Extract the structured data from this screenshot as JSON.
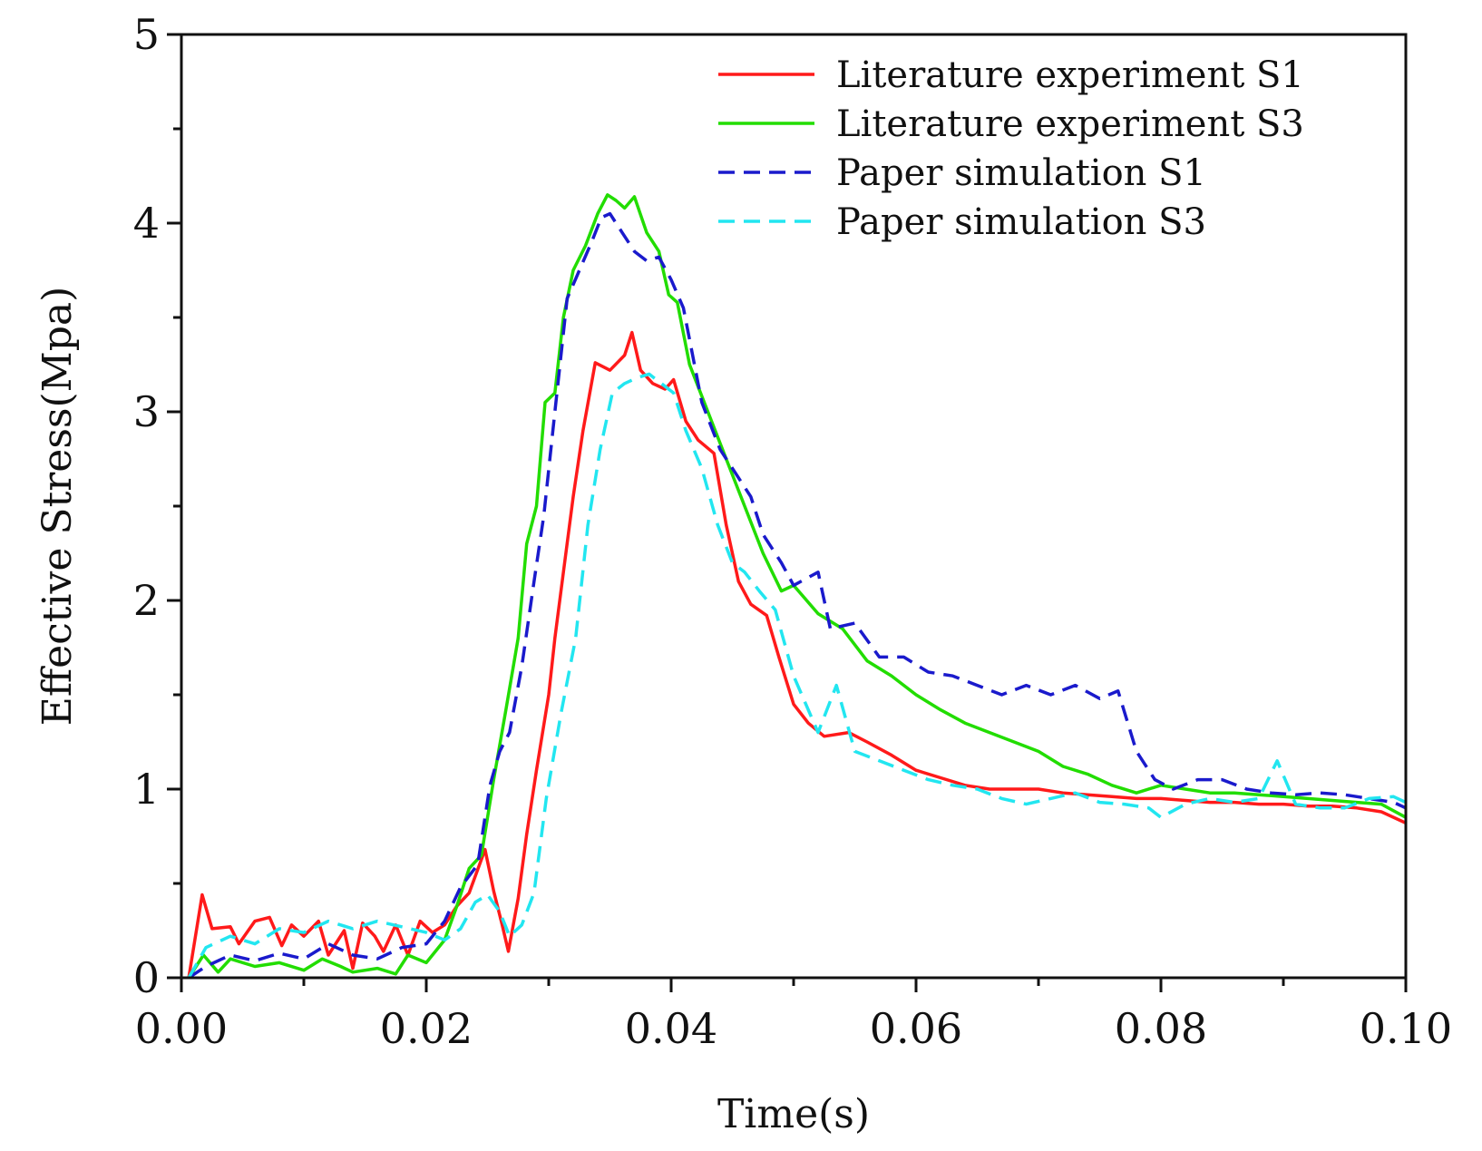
{
  "chart_data": {
    "type": "line",
    "title": "",
    "xlabel": "Time(s)",
    "ylabel": "Effective Stress(Mpa)",
    "xlim": [
      0,
      0.1
    ],
    "ylim": [
      0,
      5
    ],
    "x_ticks": [
      0,
      0.02,
      0.04,
      0.06,
      0.08,
      0.1
    ],
    "x_tick_labels": [
      "0.00",
      "0.02",
      "0.04",
      "0.06",
      "0.08",
      "0.10"
    ],
    "y_ticks": [
      0,
      1,
      2,
      3,
      4,
      5
    ],
    "y_tick_labels": [
      "0",
      "1",
      "2",
      "3",
      "4",
      "5"
    ],
    "grid": false,
    "legend_position": "top-right",
    "series": [
      {
        "name": "Literature experiment S1",
        "color": "#ff1a1a",
        "style": "solid",
        "points": [
          [
            0.0006,
            0.0
          ],
          [
            0.0017,
            0.44
          ],
          [
            0.0025,
            0.26
          ],
          [
            0.004,
            0.27
          ],
          [
            0.0047,
            0.18
          ],
          [
            0.006,
            0.3
          ],
          [
            0.0072,
            0.32
          ],
          [
            0.0082,
            0.17
          ],
          [
            0.009,
            0.28
          ],
          [
            0.01,
            0.22
          ],
          [
            0.0112,
            0.3
          ],
          [
            0.012,
            0.12
          ],
          [
            0.0133,
            0.25
          ],
          [
            0.014,
            0.05
          ],
          [
            0.0148,
            0.29
          ],
          [
            0.0158,
            0.22
          ],
          [
            0.0165,
            0.14
          ],
          [
            0.0175,
            0.28
          ],
          [
            0.0185,
            0.12
          ],
          [
            0.0195,
            0.3
          ],
          [
            0.0205,
            0.24
          ],
          [
            0.0215,
            0.28
          ],
          [
            0.0225,
            0.38
          ],
          [
            0.0235,
            0.45
          ],
          [
            0.0248,
            0.68
          ],
          [
            0.0255,
            0.46
          ],
          [
            0.0262,
            0.28
          ],
          [
            0.0267,
            0.14
          ],
          [
            0.0275,
            0.42
          ],
          [
            0.0282,
            0.76
          ],
          [
            0.029,
            1.1
          ],
          [
            0.03,
            1.5
          ],
          [
            0.0305,
            1.8
          ],
          [
            0.0312,
            2.15
          ],
          [
            0.032,
            2.55
          ],
          [
            0.0328,
            2.9
          ],
          [
            0.0338,
            3.26
          ],
          [
            0.035,
            3.22
          ],
          [
            0.0362,
            3.3
          ],
          [
            0.0368,
            3.42
          ],
          [
            0.0375,
            3.22
          ],
          [
            0.0385,
            3.15
          ],
          [
            0.0395,
            3.12
          ],
          [
            0.0402,
            3.17
          ],
          [
            0.0412,
            2.95
          ],
          [
            0.0422,
            2.85
          ],
          [
            0.0435,
            2.78
          ],
          [
            0.0445,
            2.4
          ],
          [
            0.0455,
            2.1
          ],
          [
            0.0465,
            1.98
          ],
          [
            0.0478,
            1.92
          ],
          [
            0.0488,
            1.7
          ],
          [
            0.05,
            1.45
          ],
          [
            0.0512,
            1.35
          ],
          [
            0.0525,
            1.28
          ],
          [
            0.0545,
            1.3
          ],
          [
            0.056,
            1.25
          ],
          [
            0.058,
            1.18
          ],
          [
            0.06,
            1.1
          ],
          [
            0.062,
            1.06
          ],
          [
            0.064,
            1.02
          ],
          [
            0.066,
            1.0
          ],
          [
            0.068,
            1.0
          ],
          [
            0.07,
            1.0
          ],
          [
            0.072,
            0.98
          ],
          [
            0.074,
            0.97
          ],
          [
            0.076,
            0.96
          ],
          [
            0.078,
            0.95
          ],
          [
            0.08,
            0.95
          ],
          [
            0.082,
            0.94
          ],
          [
            0.084,
            0.93
          ],
          [
            0.086,
            0.93
          ],
          [
            0.088,
            0.92
          ],
          [
            0.09,
            0.92
          ],
          [
            0.092,
            0.91
          ],
          [
            0.094,
            0.91
          ],
          [
            0.096,
            0.9
          ],
          [
            0.098,
            0.88
          ],
          [
            0.1,
            0.82
          ]
        ]
      },
      {
        "name": "Literature experiment S3",
        "color": "#22dd00",
        "style": "solid",
        "points": [
          [
            0.0006,
            0.0
          ],
          [
            0.0018,
            0.12
          ],
          [
            0.003,
            0.03
          ],
          [
            0.004,
            0.1
          ],
          [
            0.006,
            0.06
          ],
          [
            0.008,
            0.08
          ],
          [
            0.01,
            0.04
          ],
          [
            0.0115,
            0.1
          ],
          [
            0.013,
            0.06
          ],
          [
            0.014,
            0.03
          ],
          [
            0.016,
            0.05
          ],
          [
            0.0175,
            0.02
          ],
          [
            0.0185,
            0.12
          ],
          [
            0.02,
            0.08
          ],
          [
            0.0215,
            0.2
          ],
          [
            0.0225,
            0.38
          ],
          [
            0.0235,
            0.58
          ],
          [
            0.0245,
            0.65
          ],
          [
            0.0255,
            1.05
          ],
          [
            0.0265,
            1.42
          ],
          [
            0.0275,
            1.8
          ],
          [
            0.0282,
            2.3
          ],
          [
            0.029,
            2.5
          ],
          [
            0.0297,
            3.05
          ],
          [
            0.0305,
            3.1
          ],
          [
            0.0312,
            3.5
          ],
          [
            0.032,
            3.75
          ],
          [
            0.033,
            3.88
          ],
          [
            0.034,
            4.05
          ],
          [
            0.0348,
            4.15
          ],
          [
            0.0355,
            4.12
          ],
          [
            0.0362,
            4.08
          ],
          [
            0.037,
            4.14
          ],
          [
            0.038,
            3.95
          ],
          [
            0.039,
            3.85
          ],
          [
            0.0398,
            3.62
          ],
          [
            0.0405,
            3.58
          ],
          [
            0.0415,
            3.25
          ],
          [
            0.043,
            3.0
          ],
          [
            0.0445,
            2.75
          ],
          [
            0.046,
            2.5
          ],
          [
            0.0475,
            2.25
          ],
          [
            0.049,
            2.05
          ],
          [
            0.05,
            2.08
          ],
          [
            0.052,
            1.93
          ],
          [
            0.054,
            1.85
          ],
          [
            0.056,
            1.68
          ],
          [
            0.058,
            1.6
          ],
          [
            0.06,
            1.5
          ],
          [
            0.062,
            1.42
          ],
          [
            0.064,
            1.35
          ],
          [
            0.066,
            1.3
          ],
          [
            0.068,
            1.25
          ],
          [
            0.07,
            1.2
          ],
          [
            0.072,
            1.12
          ],
          [
            0.074,
            1.08
          ],
          [
            0.076,
            1.02
          ],
          [
            0.078,
            0.98
          ],
          [
            0.08,
            1.02
          ],
          [
            0.082,
            1.0
          ],
          [
            0.084,
            0.98
          ],
          [
            0.086,
            0.98
          ],
          [
            0.088,
            0.97
          ],
          [
            0.09,
            0.96
          ],
          [
            0.092,
            0.95
          ],
          [
            0.094,
            0.94
          ],
          [
            0.096,
            0.93
          ],
          [
            0.098,
            0.92
          ],
          [
            0.1,
            0.85
          ]
        ]
      },
      {
        "name": "Paper simulation S1",
        "color": "#1a1acc",
        "style": "dashed",
        "points": [
          [
            0.0006,
            0.0
          ],
          [
            0.002,
            0.06
          ],
          [
            0.004,
            0.12
          ],
          [
            0.006,
            0.09
          ],
          [
            0.008,
            0.13
          ],
          [
            0.01,
            0.1
          ],
          [
            0.012,
            0.18
          ],
          [
            0.014,
            0.12
          ],
          [
            0.016,
            0.1
          ],
          [
            0.018,
            0.16
          ],
          [
            0.02,
            0.18
          ],
          [
            0.0215,
            0.3
          ],
          [
            0.0228,
            0.48
          ],
          [
            0.0242,
            0.6
          ],
          [
            0.0252,
            1.02
          ],
          [
            0.026,
            1.2
          ],
          [
            0.0268,
            1.3
          ],
          [
            0.0278,
            1.65
          ],
          [
            0.0288,
            2.1
          ],
          [
            0.0296,
            2.45
          ],
          [
            0.0305,
            3.0
          ],
          [
            0.0315,
            3.6
          ],
          [
            0.0325,
            3.75
          ],
          [
            0.0335,
            3.9
          ],
          [
            0.0343,
            4.03
          ],
          [
            0.035,
            4.05
          ],
          [
            0.036,
            3.95
          ],
          [
            0.037,
            3.85
          ],
          [
            0.038,
            3.8
          ],
          [
            0.039,
            3.82
          ],
          [
            0.04,
            3.7
          ],
          [
            0.041,
            3.55
          ],
          [
            0.0425,
            3.05
          ],
          [
            0.044,
            2.8
          ],
          [
            0.0455,
            2.65
          ],
          [
            0.0465,
            2.55
          ],
          [
            0.0475,
            2.35
          ],
          [
            0.049,
            2.2
          ],
          [
            0.05,
            2.08
          ],
          [
            0.052,
            2.15
          ],
          [
            0.053,
            1.85
          ],
          [
            0.055,
            1.88
          ],
          [
            0.057,
            1.7
          ],
          [
            0.059,
            1.7
          ],
          [
            0.061,
            1.62
          ],
          [
            0.063,
            1.6
          ],
          [
            0.065,
            1.55
          ],
          [
            0.067,
            1.5
          ],
          [
            0.069,
            1.55
          ],
          [
            0.071,
            1.5
          ],
          [
            0.073,
            1.55
          ],
          [
            0.075,
            1.48
          ],
          [
            0.0765,
            1.52
          ],
          [
            0.078,
            1.2
          ],
          [
            0.0795,
            1.05
          ],
          [
            0.081,
            1.0
          ],
          [
            0.083,
            1.05
          ],
          [
            0.085,
            1.05
          ],
          [
            0.087,
            1.0
          ],
          [
            0.089,
            0.98
          ],
          [
            0.091,
            0.97
          ],
          [
            0.093,
            0.98
          ],
          [
            0.095,
            0.97
          ],
          [
            0.097,
            0.95
          ],
          [
            0.099,
            0.93
          ],
          [
            0.1,
            0.9
          ]
        ]
      },
      {
        "name": "Paper simulation S3",
        "color": "#22e6f0",
        "style": "dashed",
        "points": [
          [
            0.0006,
            0.0
          ],
          [
            0.002,
            0.16
          ],
          [
            0.004,
            0.22
          ],
          [
            0.006,
            0.18
          ],
          [
            0.008,
            0.26
          ],
          [
            0.01,
            0.24
          ],
          [
            0.012,
            0.3
          ],
          [
            0.014,
            0.26
          ],
          [
            0.016,
            0.3
          ],
          [
            0.018,
            0.27
          ],
          [
            0.02,
            0.24
          ],
          [
            0.0215,
            0.2
          ],
          [
            0.0228,
            0.26
          ],
          [
            0.024,
            0.4
          ],
          [
            0.025,
            0.44
          ],
          [
            0.026,
            0.35
          ],
          [
            0.0268,
            0.22
          ],
          [
            0.0278,
            0.28
          ],
          [
            0.0288,
            0.45
          ],
          [
            0.0298,
            0.95
          ],
          [
            0.031,
            1.4
          ],
          [
            0.0322,
            1.8
          ],
          [
            0.0332,
            2.4
          ],
          [
            0.0342,
            2.8
          ],
          [
            0.0352,
            3.1
          ],
          [
            0.0362,
            3.15
          ],
          [
            0.0372,
            3.18
          ],
          [
            0.0382,
            3.2
          ],
          [
            0.0392,
            3.15
          ],
          [
            0.0402,
            3.1
          ],
          [
            0.0412,
            2.9
          ],
          [
            0.0425,
            2.7
          ],
          [
            0.0438,
            2.4
          ],
          [
            0.045,
            2.2
          ],
          [
            0.046,
            2.15
          ],
          [
            0.0472,
            2.05
          ],
          [
            0.0485,
            1.95
          ],
          [
            0.05,
            1.6
          ],
          [
            0.052,
            1.3
          ],
          [
            0.0535,
            1.55
          ],
          [
            0.055,
            1.2
          ],
          [
            0.057,
            1.15
          ],
          [
            0.059,
            1.1
          ],
          [
            0.061,
            1.05
          ],
          [
            0.063,
            1.02
          ],
          [
            0.065,
            1.0
          ],
          [
            0.067,
            0.95
          ],
          [
            0.069,
            0.92
          ],
          [
            0.071,
            0.95
          ],
          [
            0.073,
            0.98
          ],
          [
            0.075,
            0.93
          ],
          [
            0.077,
            0.92
          ],
          [
            0.079,
            0.9
          ],
          [
            0.08,
            0.85
          ],
          [
            0.082,
            0.92
          ],
          [
            0.084,
            0.95
          ],
          [
            0.086,
            0.93
          ],
          [
            0.088,
            0.95
          ],
          [
            0.0895,
            1.15
          ],
          [
            0.091,
            0.92
          ],
          [
            0.093,
            0.9
          ],
          [
            0.095,
            0.9
          ],
          [
            0.097,
            0.95
          ],
          [
            0.099,
            0.96
          ],
          [
            0.1,
            0.93
          ]
        ]
      }
    ]
  }
}
